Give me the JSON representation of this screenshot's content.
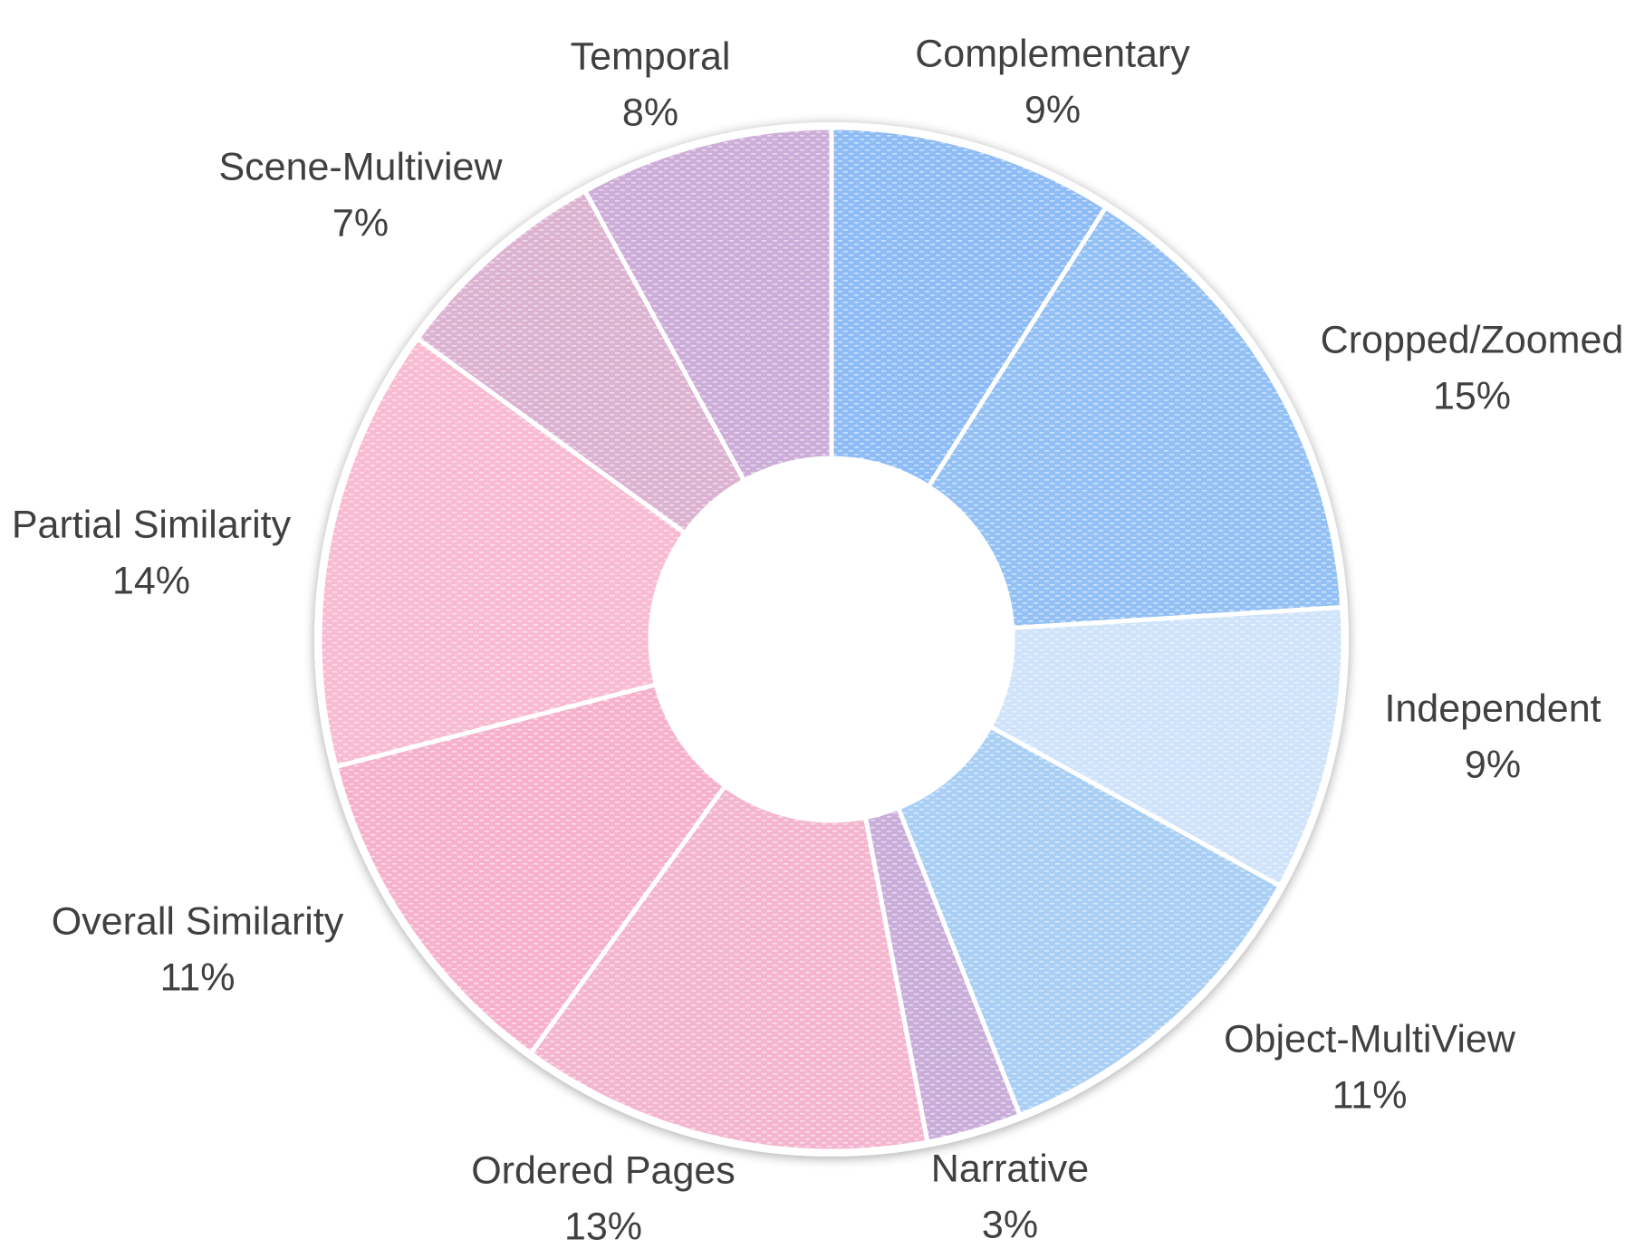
{
  "chart_data": {
    "type": "pie",
    "variant": "donut",
    "start_angle_deg": 0,
    "direction": "clockwise",
    "slices": [
      {
        "name": "Complementary",
        "label": "Complementary",
        "value": 9,
        "value_label": "9%",
        "color": "#8EBCF6"
      },
      {
        "name": "Cropped/Zoomed",
        "label": "Cropped/Zoomed",
        "value": 15,
        "value_label": "15%",
        "color": "#93C1F5"
      },
      {
        "name": "Independent",
        "label": "Independent",
        "value": 9,
        "value_label": "9%",
        "color": "#CFE3FA"
      },
      {
        "name": "Object-MultiView",
        "label": "Object-MultiView",
        "value": 11,
        "value_label": "11%",
        "color": "#A9CFF4"
      },
      {
        "name": "Narrative",
        "label": "Narrative",
        "value": 3,
        "value_label": "3%",
        "color": "#C9AED9"
      },
      {
        "name": "Ordered Pages",
        "label": "Ordered Pages",
        "value": 13,
        "value_label": "13%",
        "color": "#F4B6CF"
      },
      {
        "name": "Overall Similarity",
        "label": "Overall Similarity",
        "value": 11,
        "value_label": "11%",
        "color": "#F6B2CC"
      },
      {
        "name": "Partial Similarity",
        "label": "Partial Similarity",
        "value": 14,
        "value_label": "14%",
        "color": "#F9BBD2"
      },
      {
        "name": "Scene-Multiview",
        "label": "Scene-Multiview",
        "value": 7,
        "value_label": "7%",
        "color": "#DDB3D2"
      },
      {
        "name": "Temporal",
        "label": "Temporal",
        "value": 8,
        "value_label": "8%",
        "color": "#CDAED8"
      }
    ],
    "legend": "none",
    "data_labels": "outside"
  }
}
